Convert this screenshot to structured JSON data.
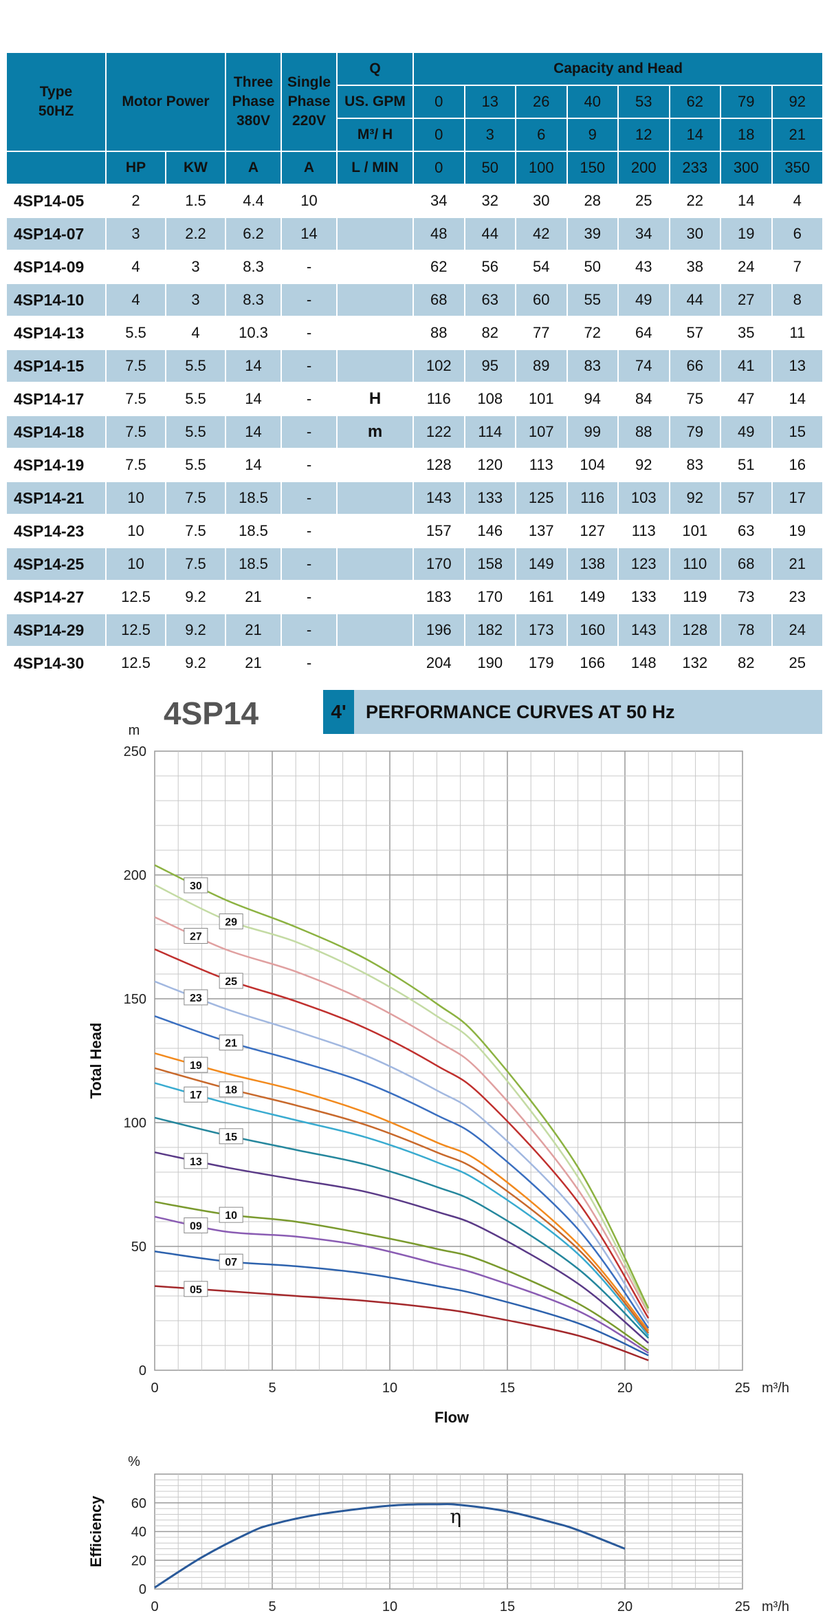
{
  "table": {
    "header": {
      "type": "Type",
      "type2": "50HZ",
      "motor_power": "Motor Power",
      "three_phase": [
        "Three",
        "Phase",
        "380V"
      ],
      "single_phase": [
        "Single",
        "Phase",
        "220V"
      ],
      "q": "Q",
      "capacity_head": "Capacity and Head",
      "gpm_label": "US. GPM",
      "m3h_label": "M³/ H",
      "lmin_label": "L / MIN",
      "hp": "HP",
      "kw": "KW",
      "a3": "A",
      "a1": "A",
      "gpm": [
        "0",
        "13",
        "26",
        "40",
        "53",
        "62",
        "79",
        "92"
      ],
      "m3h": [
        "0",
        "3",
        "6",
        "9",
        "12",
        "14",
        "18",
        "21"
      ],
      "lmin": [
        "0",
        "50",
        "100",
        "150",
        "200",
        "233",
        "300",
        "350"
      ]
    },
    "q_unit_h": "H",
    "q_unit_m": "m",
    "rows": [
      {
        "type": "4SP14-05",
        "hp": "2",
        "kw": "1.5",
        "a3": "4.4",
        "a1": "10",
        "head": [
          "34",
          "32",
          "30",
          "28",
          "25",
          "22",
          "14",
          "4"
        ]
      },
      {
        "type": "4SP14-07",
        "hp": "3",
        "kw": "2.2",
        "a3": "6.2",
        "a1": "14",
        "head": [
          "48",
          "44",
          "42",
          "39",
          "34",
          "30",
          "19",
          "6"
        ]
      },
      {
        "type": "4SP14-09",
        "hp": "4",
        "kw": "3",
        "a3": "8.3",
        "a1": "-",
        "head": [
          "62",
          "56",
          "54",
          "50",
          "43",
          "38",
          "24",
          "7"
        ]
      },
      {
        "type": "4SP14-10",
        "hp": "4",
        "kw": "3",
        "a3": "8.3",
        "a1": "-",
        "head": [
          "68",
          "63",
          "60",
          "55",
          "49",
          "44",
          "27",
          "8"
        ]
      },
      {
        "type": "4SP14-13",
        "hp": "5.5",
        "kw": "4",
        "a3": "10.3",
        "a1": "-",
        "head": [
          "88",
          "82",
          "77",
          "72",
          "64",
          "57",
          "35",
          "11"
        ]
      },
      {
        "type": "4SP14-15",
        "hp": "7.5",
        "kw": "5.5",
        "a3": "14",
        "a1": "-",
        "head": [
          "102",
          "95",
          "89",
          "83",
          "74",
          "66",
          "41",
          "13"
        ]
      },
      {
        "type": "4SP14-17",
        "hp": "7.5",
        "kw": "5.5",
        "a3": "14",
        "a1": "-",
        "head": [
          "116",
          "108",
          "101",
          "94",
          "84",
          "75",
          "47",
          "14"
        ]
      },
      {
        "type": "4SP14-18",
        "hp": "7.5",
        "kw": "5.5",
        "a3": "14",
        "a1": "-",
        "head": [
          "122",
          "114",
          "107",
          "99",
          "88",
          "79",
          "49",
          "15"
        ]
      },
      {
        "type": "4SP14-19",
        "hp": "7.5",
        "kw": "5.5",
        "a3": "14",
        "a1": "-",
        "head": [
          "128",
          "120",
          "113",
          "104",
          "92",
          "83",
          "51",
          "16"
        ]
      },
      {
        "type": "4SP14-21",
        "hp": "10",
        "kw": "7.5",
        "a3": "18.5",
        "a1": "-",
        "head": [
          "143",
          "133",
          "125",
          "116",
          "103",
          "92",
          "57",
          "17"
        ]
      },
      {
        "type": "4SP14-23",
        "hp": "10",
        "kw": "7.5",
        "a3": "18.5",
        "a1": "-",
        "head": [
          "157",
          "146",
          "137",
          "127",
          "113",
          "101",
          "63",
          "19"
        ]
      },
      {
        "type": "4SP14-25",
        "hp": "10",
        "kw": "7.5",
        "a3": "18.5",
        "a1": "-",
        "head": [
          "170",
          "158",
          "149",
          "138",
          "123",
          "110",
          "68",
          "21"
        ]
      },
      {
        "type": "4SP14-27",
        "hp": "12.5",
        "kw": "9.2",
        "a3": "21",
        "a1": "-",
        "head": [
          "183",
          "170",
          "161",
          "149",
          "133",
          "119",
          "73",
          "23"
        ]
      },
      {
        "type": "4SP14-29",
        "hp": "12.5",
        "kw": "9.2",
        "a3": "21",
        "a1": "-",
        "head": [
          "196",
          "182",
          "173",
          "160",
          "143",
          "128",
          "78",
          "24"
        ]
      },
      {
        "type": "4SP14-30",
        "hp": "12.5",
        "kw": "9.2",
        "a3": "21",
        "a1": "-",
        "head": [
          "204",
          "190",
          "179",
          "166",
          "148",
          "132",
          "82",
          "25"
        ]
      }
    ]
  },
  "model_title": "4SP14",
  "banner": {
    "size": "4ʹ",
    "title": "PERFORMANCE CURVES AT 50 Hz"
  },
  "colors": {
    "header": "#0a7da8",
    "alt_row": "#b4cfdf",
    "eff_curve": "#2a5a9a"
  },
  "chart_data": [
    {
      "type": "line",
      "title": "PERFORMANCE CURVES AT 50 Hz",
      "xlabel": "Flow",
      "xunit": "m³/h",
      "ylabel": "Total Head",
      "yunit": "m",
      "xlim": [
        0,
        25
      ],
      "ylim": [
        0,
        250
      ],
      "xticks": [
        "0",
        "5",
        "10",
        "15",
        "20",
        "25"
      ],
      "yticks": [
        "0",
        "50",
        "100",
        "150",
        "200",
        "250"
      ],
      "grid": true,
      "x": [
        0,
        3,
        6,
        9,
        12,
        14,
        18,
        21
      ],
      "series": [
        {
          "name": "05",
          "color": "#a3282b",
          "values": [
            34,
            32,
            30,
            28,
            25,
            22,
            14,
            4
          ]
        },
        {
          "name": "07",
          "color": "#2d62ad",
          "values": [
            48,
            44,
            42,
            39,
            34,
            30,
            19,
            6
          ]
        },
        {
          "name": "09",
          "color": "#8a5cb3",
          "values": [
            62,
            56,
            54,
            50,
            43,
            38,
            24,
            7
          ]
        },
        {
          "name": "10",
          "color": "#7a9a2e",
          "values": [
            68,
            63,
            60,
            55,
            49,
            44,
            27,
            8
          ]
        },
        {
          "name": "13",
          "color": "#5a3a87",
          "values": [
            88,
            82,
            77,
            72,
            64,
            57,
            35,
            11
          ]
        },
        {
          "name": "15",
          "color": "#25879d",
          "values": [
            102,
            95,
            89,
            83,
            74,
            66,
            41,
            13
          ]
        },
        {
          "name": "17",
          "color": "#39abd0",
          "values": [
            116,
            108,
            101,
            94,
            84,
            75,
            47,
            14
          ]
        },
        {
          "name": "18",
          "color": "#c8692c",
          "values": [
            122,
            114,
            107,
            99,
            88,
            79,
            49,
            15
          ]
        },
        {
          "name": "19",
          "color": "#f28a1e",
          "values": [
            128,
            120,
            113,
            104,
            92,
            83,
            51,
            16
          ]
        },
        {
          "name": "21",
          "color": "#3a6fc0",
          "values": [
            143,
            133,
            125,
            116,
            103,
            92,
            57,
            17
          ]
        },
        {
          "name": "23",
          "color": "#a2b8e0",
          "values": [
            157,
            146,
            137,
            127,
            113,
            101,
            63,
            19
          ]
        },
        {
          "name": "25",
          "color": "#c0302e",
          "values": [
            170,
            158,
            149,
            138,
            123,
            110,
            68,
            21
          ]
        },
        {
          "name": "27",
          "color": "#e0a0a0",
          "values": [
            183,
            170,
            161,
            149,
            133,
            119,
            73,
            23
          ]
        },
        {
          "name": "29",
          "color": "#c4dba4",
          "values": [
            196,
            182,
            173,
            160,
            143,
            128,
            78,
            24
          ]
        },
        {
          "name": "30",
          "color": "#8cb241",
          "values": [
            204,
            190,
            179,
            166,
            148,
            132,
            82,
            25
          ]
        }
      ]
    },
    {
      "type": "line",
      "ylabel": "Efficiency",
      "yunit": "%",
      "xunit": "m³/h",
      "xlim": [
        0,
        25
      ],
      "ylim": [
        0,
        80
      ],
      "xticks": [
        "0",
        "5",
        "10",
        "15",
        "20",
        "25"
      ],
      "yticks": [
        "0",
        "20",
        "40",
        "60"
      ],
      "grid": true,
      "curve_label": "η",
      "x": [
        0,
        2,
        4,
        5,
        7,
        10,
        12,
        13,
        15,
        17,
        18,
        20
      ],
      "values": [
        1,
        22,
        39,
        45,
        52,
        58,
        59,
        58.5,
        54,
        46,
        41,
        28
      ]
    }
  ]
}
